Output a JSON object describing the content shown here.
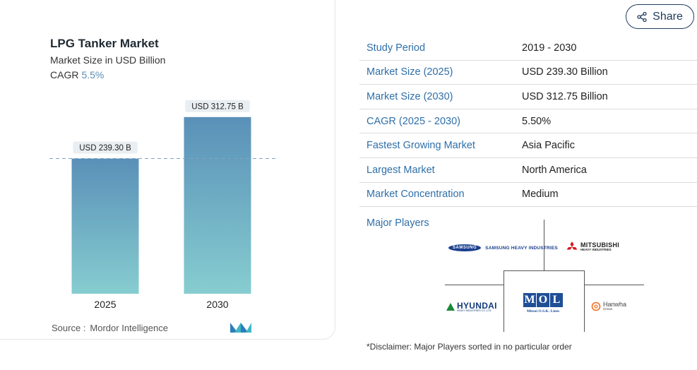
{
  "chart": {
    "title": "LPG Tanker Market",
    "subtitle": "Market Size in USD Billion",
    "cagr_label": "CAGR",
    "cagr_value": "5.5%",
    "source_label": "Source :",
    "source_value": "Mordor Intelligence",
    "bar_labels": [
      "USD 239.30 B",
      "USD 312.75 B"
    ]
  },
  "chart_data": {
    "type": "bar",
    "categories": [
      "2025",
      "2030"
    ],
    "values": [
      239.3,
      312.75
    ],
    "title": "LPG Tanker Market",
    "subtitle": "Market Size in USD Billion",
    "data_labels": [
      "USD 239.30 B",
      "USD 312.75 B"
    ],
    "ylim": [
      0,
      320
    ],
    "reference_line": 239.3,
    "grid": false,
    "colors": {
      "bar_top": "#5a90b8",
      "bar_bottom": "#86cdd0",
      "reference_line": "#7fa3c0"
    }
  },
  "share": {
    "label": "Share"
  },
  "info": {
    "rows": [
      {
        "key": "Study Period",
        "value": "2019 - 2030"
      },
      {
        "key": "Market Size (2025)",
        "value": "USD 239.30 Billion"
      },
      {
        "key": "Market Size (2030)",
        "value": "USD 312.75 Billion"
      },
      {
        "key": "CAGR (2025 - 2030)",
        "value": "5.50%"
      },
      {
        "key": "Fastest Growing Market",
        "value": "Asia Pacific"
      },
      {
        "key": "Largest Market",
        "value": "North America"
      },
      {
        "key": "Market Concentration",
        "value": "Medium"
      }
    ]
  },
  "players": {
    "label": "Major Players",
    "logos": {
      "samsung_badge": "SAMSUNG",
      "samsung": "SAMSUNG HEAVY INDUSTRIES",
      "mitsubishi": "MITSUBISHI",
      "mitsubishi_sub": "HEAVY INDUSTRIES",
      "hyundai": "HYUNDAI",
      "hyundai_sub": "HEAVY INDUSTRIES CO.,LTD.",
      "mol_letters": [
        "M",
        "O",
        "L"
      ],
      "mol_sub": "Mitsui O.S.K. Lines",
      "hanwha": "Hanwha",
      "hanwha_sub": "Ocean"
    }
  },
  "disclaimer": "*Disclaimer: Major Players sorted in no particular order",
  "colors": {
    "accent": "#2f6fa8",
    "share_border": "#1f3a5c"
  }
}
